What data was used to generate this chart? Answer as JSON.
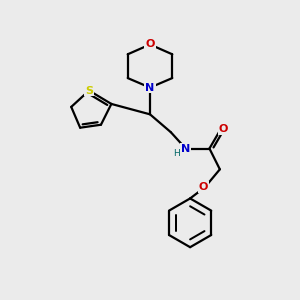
{
  "bg_color": "#ebebeb",
  "atom_colors": {
    "C": "#000000",
    "N": "#0000cc",
    "O": "#cc0000",
    "S": "#cccc00",
    "H": "#006666"
  },
  "bond_color": "#000000",
  "bond_width": 1.6,
  "figsize": [
    3.0,
    3.0
  ],
  "dpi": 100,
  "scale": 10.0
}
